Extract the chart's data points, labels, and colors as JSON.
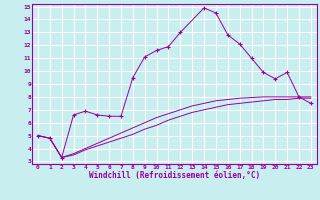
{
  "xlabel": "Windchill (Refroidissement éolien,°C)",
  "bg_color": "#c8eef0",
  "line_color": "#990099",
  "grid_color": "#ffffff",
  "xlim": [
    -0.5,
    23.5
  ],
  "ylim": [
    2.8,
    15.2
  ],
  "xticks": [
    0,
    1,
    2,
    3,
    4,
    5,
    6,
    7,
    8,
    9,
    10,
    11,
    12,
    13,
    14,
    15,
    16,
    17,
    18,
    19,
    20,
    21,
    22,
    23
  ],
  "yticks": [
    3,
    4,
    5,
    6,
    7,
    8,
    9,
    10,
    11,
    12,
    13,
    14,
    15
  ],
  "line1_x": [
    0,
    1,
    2,
    3,
    4,
    5,
    6,
    7,
    8,
    9,
    10,
    11,
    12,
    14,
    15,
    16,
    17,
    18,
    19,
    20,
    21,
    22,
    23
  ],
  "line1_y": [
    5.0,
    4.8,
    3.3,
    6.6,
    6.9,
    6.6,
    6.5,
    6.5,
    9.5,
    11.1,
    11.6,
    11.9,
    13.0,
    14.9,
    14.5,
    12.8,
    12.1,
    11.0,
    9.9,
    9.4,
    9.9,
    8.0,
    7.5
  ],
  "line2_x": [
    0,
    1,
    2,
    3,
    4,
    5,
    6,
    7,
    8,
    9,
    10,
    11,
    12,
    13,
    14,
    15,
    16,
    17,
    18,
    19,
    20,
    21,
    22,
    23
  ],
  "line2_y": [
    5.0,
    4.8,
    3.3,
    3.5,
    3.9,
    4.2,
    4.5,
    4.8,
    5.1,
    5.5,
    5.8,
    6.2,
    6.5,
    6.8,
    7.0,
    7.2,
    7.4,
    7.5,
    7.6,
    7.7,
    7.8,
    7.8,
    7.9,
    7.9
  ],
  "line3_x": [
    0,
    1,
    2,
    3,
    4,
    5,
    6,
    7,
    8,
    9,
    10,
    11,
    12,
    13,
    14,
    15,
    16,
    17,
    18,
    19,
    20,
    21,
    22,
    23
  ],
  "line3_y": [
    5.0,
    4.8,
    3.3,
    3.6,
    4.0,
    4.4,
    4.8,
    5.2,
    5.6,
    6.0,
    6.4,
    6.7,
    7.0,
    7.3,
    7.5,
    7.7,
    7.8,
    7.9,
    7.95,
    8.0,
    8.0,
    8.0,
    8.0,
    8.0
  ]
}
